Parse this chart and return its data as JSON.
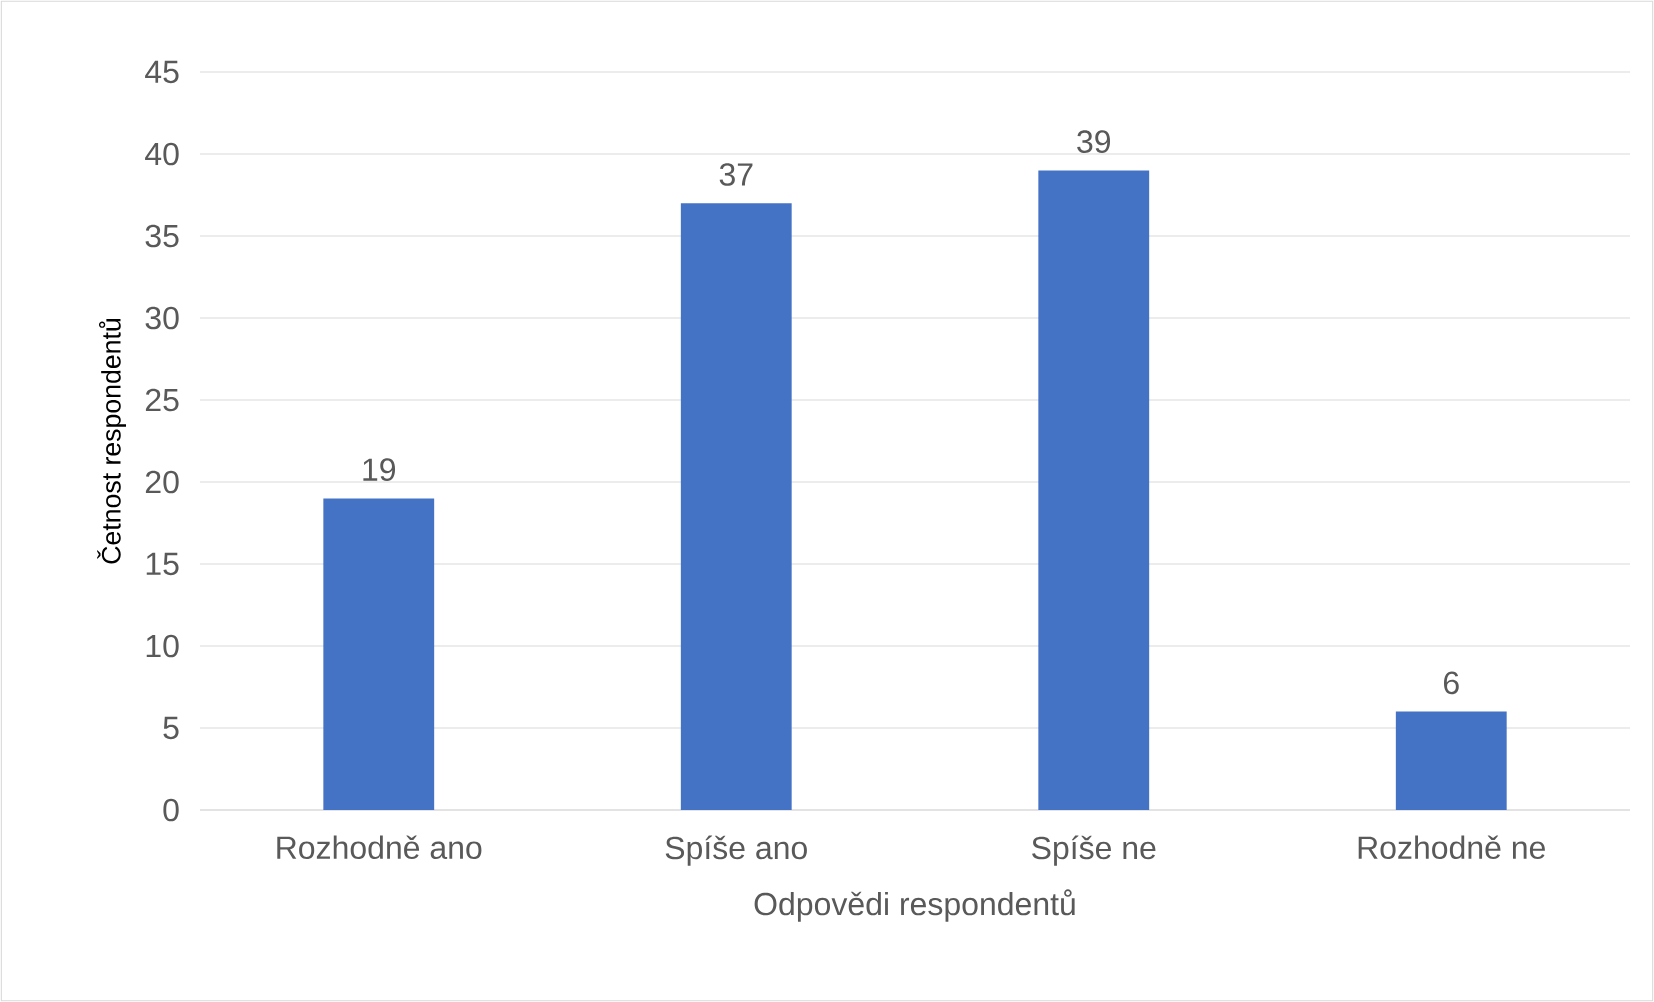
{
  "chart_data": {
    "type": "bar",
    "xlabel": "Odpovědi respondentů",
    "ylabel": "Četnost respondentů",
    "categories": [
      "Rozhodně ano",
      "Spíše ano",
      "Spíše ne",
      "Rozhodně ne"
    ],
    "values": [
      19,
      37,
      39,
      6
    ],
    "color": "#4472c4",
    "ylim": [
      0,
      45
    ],
    "yticks": [
      0,
      5,
      10,
      15,
      20,
      25,
      30,
      35,
      40,
      45
    ],
    "grid": "y",
    "data_labels": true
  }
}
